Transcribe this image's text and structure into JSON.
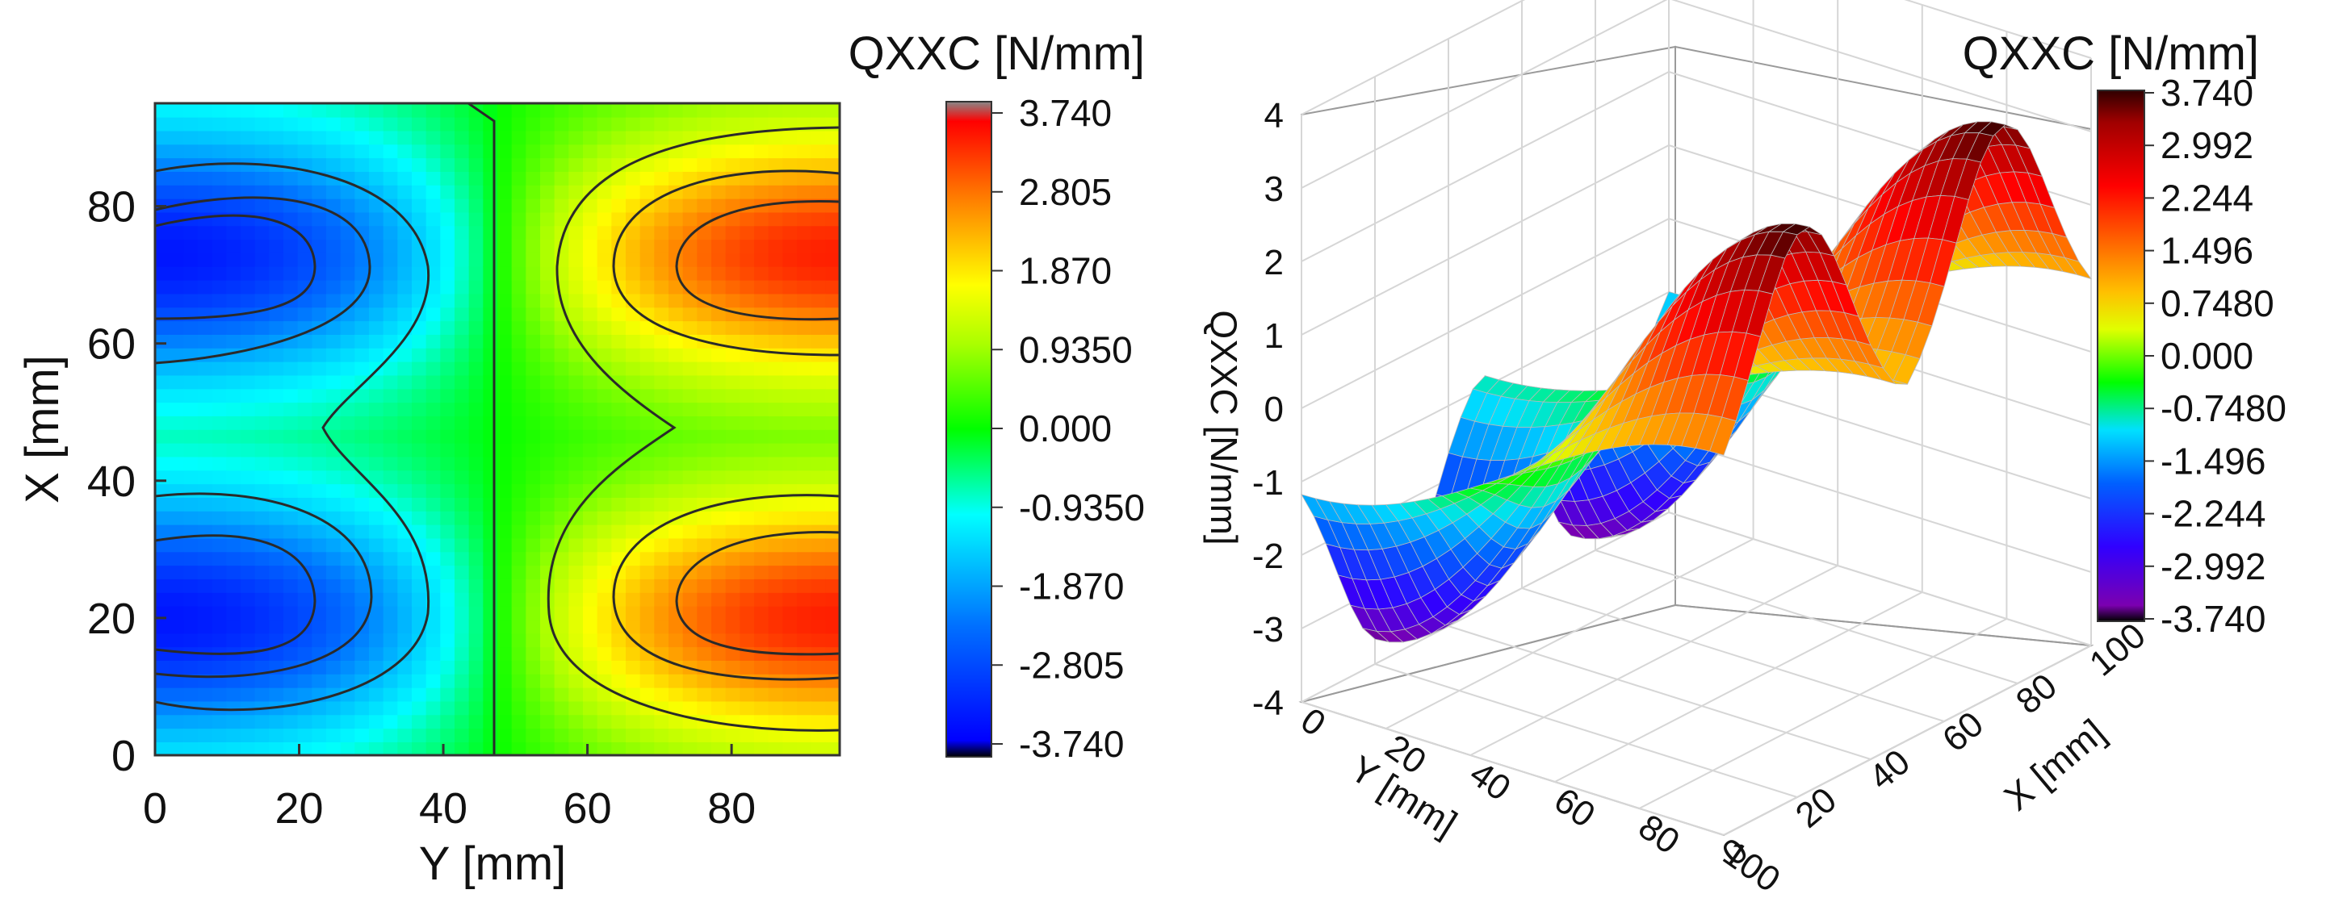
{
  "chart_data": [
    {
      "type": "heatmap",
      "subtype": "contour",
      "xlabel": "Y [mm]",
      "ylabel": "X [mm]",
      "xlim": [
        0,
        95
      ],
      "ylim": [
        0,
        95
      ],
      "x_ticks": [
        "0",
        "20",
        "40",
        "60",
        "80"
      ],
      "y_ticks": [
        "0",
        "20",
        "40",
        "60",
        "80"
      ],
      "colorbar": {
        "title": "QXXC [N/mm]",
        "range": [
          -3.74,
          3.74
        ],
        "labels": [
          "3.740",
          "2.805",
          "1.870",
          "0.9350",
          "0.000",
          "-0.9350",
          "-1.870",
          "-2.805",
          "-3.740"
        ]
      },
      "field": {
        "description_values": "QXXC approximately -3.3 at Y=0, rising through 0 near Y=47.5 to +3.3 at Y=95, with extrema near X=20 and X=73",
        "min_value": -3.3,
        "max_value": 3.3,
        "zero_line_y": 47.5,
        "extrema_x": [
          20,
          73
        ]
      }
    },
    {
      "type": "surface",
      "zlabel": "QXXC [N/mm]",
      "xlabel": "Y [mm]",
      "ylabel": "X [mm]",
      "zlim": [
        -4,
        4
      ],
      "xlim": [
        0,
        100
      ],
      "ylim": [
        0,
        100
      ],
      "z_ticks": [
        "4",
        "3",
        "2",
        "1",
        "0",
        "-1",
        "-2",
        "-3",
        "-4"
      ],
      "x_ticks": [
        "0",
        "20",
        "40",
        "60",
        "80",
        "100"
      ],
      "y_ticks": [
        "0",
        "20",
        "40",
        "60",
        "80",
        "100"
      ],
      "colorbar": {
        "title": "QXXC [N/mm]",
        "range": [
          -3.74,
          3.74
        ],
        "labels": [
          "3.740",
          "2.992",
          "2.244",
          "1.496",
          "0.7480",
          "0.000",
          "-0.7480",
          "-1.496",
          "-2.244",
          "-2.992",
          "-3.740"
        ]
      }
    }
  ]
}
